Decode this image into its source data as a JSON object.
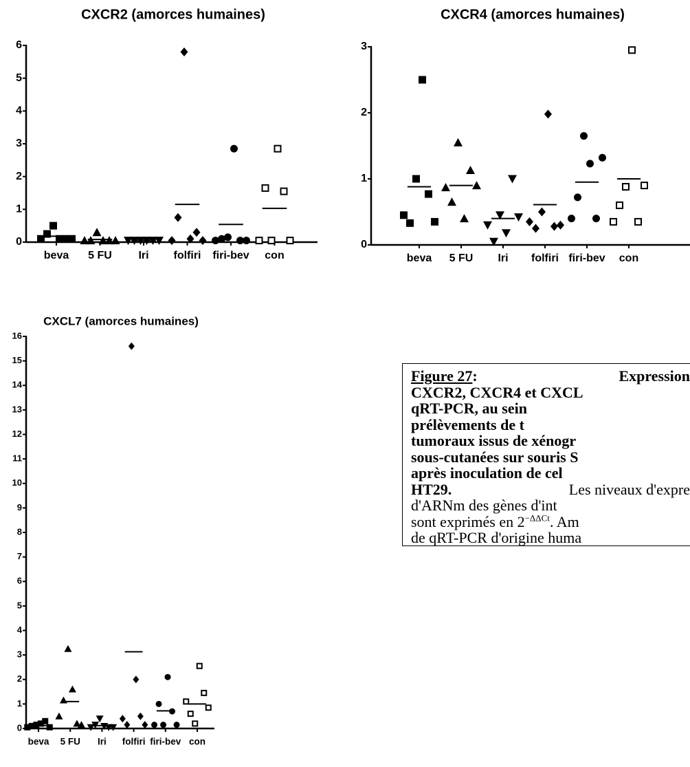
{
  "chart_data": [
    {
      "type": "dot-scatter",
      "title": "CXCR2 (amorces humaines)",
      "categories": [
        "beva",
        "5 FU",
        "Iri",
        "folfiri",
        "firi-bev",
        "con"
      ],
      "groups": [
        {
          "marker": "square",
          "values": [
            0.1,
            0.25,
            0.5,
            0.1,
            0.1,
            0.1
          ],
          "mean": 0.18
        },
        {
          "marker": "triangle",
          "values": [
            0.05,
            0.05,
            0.3,
            0.05,
            0.05,
            0.05
          ],
          "mean": 0.08
        },
        {
          "marker": "triangle-down",
          "values": [
            0.05,
            0.05,
            0.05,
            0.05,
            0.05,
            0.05
          ],
          "mean": 0.05
        },
        {
          "marker": "diamond",
          "values": [
            0.05,
            0.75,
            5.8,
            0.1,
            0.3,
            0.05
          ],
          "mean": 1.15
        },
        {
          "marker": "circle",
          "values": [
            0.05,
            0.1,
            0.15,
            2.85,
            0.05,
            0.05
          ],
          "mean": 0.54
        },
        {
          "marker": "open-square",
          "values": [
            0.05,
            1.65,
            0.05,
            2.85,
            1.55,
            0.05
          ],
          "mean": 1.03
        }
      ],
      "color": "#000000",
      "ylim": [
        0,
        6
      ],
      "yticks": [
        0,
        1,
        2,
        3,
        4,
        5,
        6
      ]
    },
    {
      "type": "dot-scatter",
      "title": "CXCR4 (amorces humaines)",
      "categories": [
        "beva",
        "5 FU",
        "Iri",
        "folfiri",
        "firi-bev",
        "con"
      ],
      "groups": [
        {
          "marker": "square",
          "values": [
            0.45,
            0.33,
            1.0,
            2.5,
            0.77,
            0.35
          ],
          "mean": 0.88
        },
        {
          "marker": "triangle",
          "values": [
            0.87,
            0.65,
            1.55,
            0.4,
            1.13,
            0.9
          ],
          "mean": 0.9
        },
        {
          "marker": "triangle-down",
          "values": [
            0.3,
            0.05,
            0.45,
            0.18,
            1.0,
            0.42
          ],
          "mean": 0.4
        },
        {
          "marker": "diamond",
          "values": [
            0.35,
            0.25,
            0.5,
            1.98,
            0.28,
            0.3
          ],
          "mean": 0.61
        },
        {
          "marker": "circle",
          "values": [
            0.4,
            0.72,
            1.65,
            1.23,
            0.4,
            1.32
          ],
          "mean": 0.95
        },
        {
          "marker": "open-square",
          "values": [
            0.35,
            0.6,
            0.88,
            2.95,
            0.35,
            0.9
          ],
          "mean": 1.0
        }
      ],
      "color": "#000000",
      "ylim": [
        0,
        3
      ],
      "yticks": [
        0,
        1,
        2,
        3
      ]
    },
    {
      "type": "dot-scatter",
      "title": "CXCL7 (amorces humaines)",
      "categories": [
        "beva",
        "5 FU",
        "Iri",
        "folfiri",
        "firi-bev",
        "con"
      ],
      "groups": [
        {
          "marker": "square",
          "values": [
            0.05,
            0.1,
            0.15,
            0.2,
            0.3,
            0.05
          ],
          "mean": 0.12
        },
        {
          "marker": "triangle",
          "values": [
            0.5,
            1.15,
            3.25,
            1.6,
            0.2,
            0.15
          ],
          "mean": 1.1
        },
        {
          "marker": "triangle-down",
          "values": [
            0.05,
            0.15,
            0.4,
            0.1,
            0.05,
            0.05
          ],
          "mean": 0.12
        },
        {
          "marker": "diamond",
          "values": [
            0.4,
            0.15,
            15.6,
            2.0,
            0.5,
            0.15
          ],
          "mean": 3.13
        },
        {
          "marker": "circle",
          "values": [
            0.15,
            1.0,
            0.15,
            2.1,
            0.7,
            0.15
          ],
          "mean": 0.72
        },
        {
          "marker": "open-square",
          "values": [
            1.1,
            0.6,
            0.2,
            2.55,
            1.45,
            0.85
          ],
          "mean": 1.0
        }
      ],
      "color": "#000000",
      "ylim": [
        0,
        16
      ],
      "yticks": [
        0,
        1,
        2,
        3,
        4,
        5,
        6,
        7,
        8,
        9,
        10,
        11,
        12,
        13,
        14,
        15,
        16
      ]
    }
  ],
  "caption": {
    "lines": [
      [
        {
          "text": "Figure 27",
          "bold": true,
          "underline": true
        },
        {
          "text": ":",
          "bold": true
        },
        {
          "text": "Expression",
          "bold": true
        }
      ],
      [
        {
          "text": "CXCR2, CXCR4 et CXCL",
          "bold": true
        }
      ],
      [
        {
          "text": "qRT-PCR, au sein",
          "bold": true
        }
      ],
      [
        {
          "text": "prélèvements de t",
          "bold": true
        }
      ],
      [
        {
          "text": "tumoraux issus de xénogr",
          "bold": true
        }
      ],
      [
        {
          "text": "sous-cutanées sur souris S",
          "bold": true
        }
      ],
      [
        {
          "text": "après inoculation de cel",
          "bold": true
        }
      ],
      [
        {
          "text": "HT29.",
          "bold": true
        },
        {
          "text": "Les niveaux d'expre"
        }
      ],
      [
        {
          "text": "d'ARNm des gènes d'int"
        }
      ],
      [
        {
          "text": "sont exprimés en 2"
        },
        {
          "text": "−ΔΔCt",
          "sup": true
        },
        {
          "text": ". Am"
        }
      ],
      [
        {
          "text": "de qRT-PCR d'origine huma"
        }
      ]
    ]
  }
}
